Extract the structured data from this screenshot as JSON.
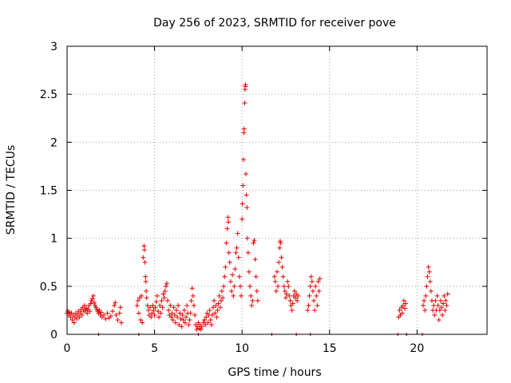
{
  "chart_data": {
    "type": "scatter",
    "title": "Day 256 of 2023, SRMTID for receiver pove",
    "xlabel": "GPS time / hours",
    "ylabel": "SRMTID / TECUs",
    "xlim": [
      0,
      24
    ],
    "ylim": [
      0,
      3
    ],
    "xticks": [
      0,
      5,
      10,
      15,
      20
    ],
    "yticks": [
      0,
      0.5,
      1,
      1.5,
      2,
      2.5,
      3
    ],
    "xtick_labels": [
      "0",
      "5",
      "10",
      "15",
      "20"
    ],
    "ytick_labels": [
      "0",
      "0.5",
      "1",
      "1.5",
      "2",
      "2.5",
      "3"
    ],
    "grid": true,
    "marker": "+",
    "color": "#e60000",
    "series": [
      {
        "name": "SRMTID",
        "points": [
          [
            0.0,
            0.22
          ],
          [
            0.05,
            0.24
          ],
          [
            0.1,
            0.2
          ],
          [
            0.15,
            0.23
          ],
          [
            0.2,
            0.18
          ],
          [
            0.25,
            0.22
          ],
          [
            0.3,
            0.15
          ],
          [
            0.35,
            0.2
          ],
          [
            0.4,
            0.12
          ],
          [
            0.45,
            0.18
          ],
          [
            0.5,
            0.22
          ],
          [
            0.55,
            0.16
          ],
          [
            0.6,
            0.2
          ],
          [
            0.65,
            0.24
          ],
          [
            0.7,
            0.18
          ],
          [
            0.75,
            0.22
          ],
          [
            0.8,
            0.26
          ],
          [
            0.85,
            0.2
          ],
          [
            0.9,
            0.28
          ],
          [
            0.95,
            0.24
          ],
          [
            1.0,
            0.3
          ],
          [
            1.05,
            0.25
          ],
          [
            1.1,
            0.27
          ],
          [
            1.15,
            0.22
          ],
          [
            1.2,
            0.26
          ],
          [
            1.25,
            0.3
          ],
          [
            1.3,
            0.24
          ],
          [
            1.35,
            0.32
          ],
          [
            1.4,
            0.35
          ],
          [
            1.45,
            0.37
          ],
          [
            1.5,
            0.4
          ],
          [
            1.55,
            0.33
          ],
          [
            1.6,
            0.3
          ],
          [
            1.65,
            0.28
          ],
          [
            1.7,
            0.26
          ],
          [
            1.75,
            0.24
          ],
          [
            1.8,
            0.22
          ],
          [
            1.85,
            0.25
          ],
          [
            1.9,
            0.2
          ],
          [
            1.95,
            0.23
          ],
          [
            2.0,
            0.18
          ],
          [
            2.1,
            0.2
          ],
          [
            2.2,
            0.16
          ],
          [
            2.3,
            0.22
          ],
          [
            2.4,
            0.17
          ],
          [
            2.5,
            0.19
          ],
          [
            2.6,
            0.24
          ],
          [
            2.7,
            0.3
          ],
          [
            2.75,
            0.33
          ],
          [
            2.8,
            0.2
          ],
          [
            2.9,
            0.15
          ],
          [
            3.0,
            0.22
          ],
          [
            3.05,
            0.28
          ],
          [
            3.1,
            0.12
          ],
          [
            4.0,
            0.3
          ],
          [
            4.05,
            0.35
          ],
          [
            4.1,
            0.22
          ],
          [
            4.15,
            0.38
          ],
          [
            4.2,
            0.15
          ],
          [
            4.25,
            0.4
          ],
          [
            4.3,
            0.12
          ],
          [
            4.35,
            0.8
          ],
          [
            4.4,
            0.92
          ],
          [
            4.42,
            0.88
          ],
          [
            4.45,
            0.75
          ],
          [
            4.48,
            0.6
          ],
          [
            4.5,
            0.55
          ],
          [
            4.52,
            0.45
          ],
          [
            4.55,
            0.38
          ],
          [
            4.6,
            0.3
          ],
          [
            4.65,
            0.25
          ],
          [
            4.7,
            0.2
          ],
          [
            4.75,
            0.28
          ],
          [
            4.8,
            0.18
          ],
          [
            4.85,
            0.22
          ],
          [
            4.9,
            0.3
          ],
          [
            4.95,
            0.25
          ],
          [
            5.0,
            0.2
          ],
          [
            5.05,
            0.28
          ],
          [
            5.1,
            0.34
          ],
          [
            5.15,
            0.4
          ],
          [
            5.2,
            0.24
          ],
          [
            5.25,
            0.18
          ],
          [
            5.3,
            0.3
          ],
          [
            5.35,
            0.22
          ],
          [
            5.4,
            0.35
          ],
          [
            5.45,
            0.28
          ],
          [
            5.5,
            0.42
          ],
          [
            5.55,
            0.38
          ],
          [
            5.6,
            0.45
          ],
          [
            5.65,
            0.5
          ],
          [
            5.7,
            0.53
          ],
          [
            5.75,
            0.35
          ],
          [
            5.8,
            0.25
          ],
          [
            5.85,
            0.2
          ],
          [
            5.9,
            0.3
          ],
          [
            5.95,
            0.18
          ],
          [
            6.0,
            0.22
          ],
          [
            6.05,
            0.15
          ],
          [
            6.1,
            0.28
          ],
          [
            6.15,
            0.2
          ],
          [
            6.2,
            0.12
          ],
          [
            6.25,
            0.25
          ],
          [
            6.3,
            0.18
          ],
          [
            6.35,
            0.3
          ],
          [
            6.4,
            0.1
          ],
          [
            6.45,
            0.22
          ],
          [
            6.5,
            0.16
          ],
          [
            6.55,
            0.08
          ],
          [
            6.6,
            0.2
          ],
          [
            6.65,
            0.15
          ],
          [
            6.7,
            0.25
          ],
          [
            6.75,
            0.12
          ],
          [
            6.8,
            0.18
          ],
          [
            6.85,
            0.3
          ],
          [
            6.9,
            0.22
          ],
          [
            6.95,
            0.1
          ],
          [
            7.0,
            0.15
          ],
          [
            7.05,
            0.22
          ],
          [
            7.1,
            0.35
          ],
          [
            7.15,
            0.48
          ],
          [
            7.2,
            0.4
          ],
          [
            7.25,
            0.3
          ],
          [
            7.3,
            0.2
          ],
          [
            7.35,
            0.1
          ],
          [
            7.4,
            0.05
          ],
          [
            7.45,
            0.08
          ],
          [
            7.5,
            0.12
          ],
          [
            7.55,
            0.06
          ],
          [
            7.6,
            0.1
          ],
          [
            7.65,
            0.05
          ],
          [
            7.7,
            0.08
          ],
          [
            7.8,
            0.12
          ],
          [
            7.85,
            0.15
          ],
          [
            7.9,
            0.1
          ],
          [
            7.95,
            0.18
          ],
          [
            8.0,
            0.22
          ],
          [
            8.05,
            0.12
          ],
          [
            8.1,
            0.2
          ],
          [
            8.15,
            0.25
          ],
          [
            8.2,
            0.15
          ],
          [
            8.25,
            0.1
          ],
          [
            8.3,
            0.2
          ],
          [
            8.35,
            0.28
          ],
          [
            8.4,
            0.35
          ],
          [
            8.45,
            0.22
          ],
          [
            8.5,
            0.3
          ],
          [
            8.55,
            0.18
          ],
          [
            8.6,
            0.25
          ],
          [
            8.65,
            0.32
          ],
          [
            8.7,
            0.4
          ],
          [
            8.75,
            0.28
          ],
          [
            8.8,
            0.35
          ],
          [
            8.85,
            0.45
          ],
          [
            8.9,
            0.38
          ],
          [
            8.95,
            0.5
          ],
          [
            9.0,
            0.6
          ],
          [
            9.05,
            0.7
          ],
          [
            9.1,
            0.95
          ],
          [
            9.15,
            1.1
          ],
          [
            9.2,
            1.22
          ],
          [
            9.22,
            1.17
          ],
          [
            9.25,
            0.85
          ],
          [
            9.3,
            0.75
          ],
          [
            9.35,
            0.55
          ],
          [
            9.4,
            0.45
          ],
          [
            9.45,
            0.62
          ],
          [
            9.5,
            0.4
          ],
          [
            9.55,
            0.5
          ],
          [
            9.6,
            0.68
          ],
          [
            9.65,
            0.85
          ],
          [
            9.7,
            0.9
          ],
          [
            9.75,
            1.05
          ],
          [
            9.8,
            0.8
          ],
          [
            9.85,
            0.6
          ],
          [
            9.9,
            0.5
          ],
          [
            9.95,
            0.4
          ],
          [
            10.0,
            1.2
          ],
          [
            10.02,
            1.36
          ],
          [
            10.05,
            1.55
          ],
          [
            10.08,
            1.82
          ],
          [
            10.1,
            2.1
          ],
          [
            10.12,
            2.14
          ],
          [
            10.15,
            2.41
          ],
          [
            10.17,
            2.55
          ],
          [
            10.18,
            2.58
          ],
          [
            10.2,
            2.6
          ],
          [
            10.22,
            1.67
          ],
          [
            10.25,
            1.45
          ],
          [
            10.28,
            1.32
          ],
          [
            10.3,
            1.0
          ],
          [
            10.35,
            0.85
          ],
          [
            10.4,
            0.65
          ],
          [
            10.45,
            0.5
          ],
          [
            10.5,
            0.4
          ],
          [
            10.55,
            0.3
          ],
          [
            10.6,
            0.35
          ],
          [
            10.65,
            0.95
          ],
          [
            10.7,
            0.98
          ],
          [
            10.75,
            0.78
          ],
          [
            10.8,
            0.6
          ],
          [
            10.85,
            0.45
          ],
          [
            10.9,
            0.35
          ],
          [
            11.85,
            0.6
          ],
          [
            11.9,
            0.55
          ],
          [
            11.95,
            0.45
          ],
          [
            12.0,
            0.65
          ],
          [
            12.05,
            0.5
          ],
          [
            12.1,
            0.75
          ],
          [
            12.15,
            0.9
          ],
          [
            12.18,
            0.97
          ],
          [
            12.2,
            0.95
          ],
          [
            12.25,
            0.8
          ],
          [
            12.3,
            0.7
          ],
          [
            12.35,
            0.6
          ],
          [
            12.4,
            0.5
          ],
          [
            12.45,
            0.45
          ],
          [
            12.5,
            0.38
          ],
          [
            12.55,
            0.42
          ],
          [
            12.6,
            0.55
          ],
          [
            12.65,
            0.5
          ],
          [
            12.7,
            0.4
          ],
          [
            12.75,
            0.35
          ],
          [
            12.8,
            0.3
          ],
          [
            12.85,
            0.25
          ],
          [
            12.9,
            0.32
          ],
          [
            12.95,
            0.4
          ],
          [
            13.0,
            0.45
          ],
          [
            13.05,
            0.38
          ],
          [
            13.1,
            0.42
          ],
          [
            13.15,
            0.35
          ],
          [
            13.2,
            0.4
          ],
          [
            13.75,
            0.25
          ],
          [
            13.8,
            0.3
          ],
          [
            13.85,
            0.4
          ],
          [
            13.9,
            0.5
          ],
          [
            13.95,
            0.6
          ],
          [
            14.0,
            0.55
          ],
          [
            14.05,
            0.45
          ],
          [
            14.1,
            0.35
          ],
          [
            14.15,
            0.25
          ],
          [
            14.2,
            0.5
          ],
          [
            14.25,
            0.4
          ],
          [
            14.3,
            0.3
          ],
          [
            14.35,
            0.55
          ],
          [
            14.4,
            0.45
          ],
          [
            14.45,
            0.58
          ],
          [
            18.95,
            0.18
          ],
          [
            19.0,
            0.25
          ],
          [
            19.05,
            0.2
          ],
          [
            19.1,
            0.28
          ],
          [
            19.15,
            0.22
          ],
          [
            19.2,
            0.3
          ],
          [
            19.25,
            0.35
          ],
          [
            19.3,
            0.27
          ],
          [
            19.35,
            0.32
          ],
          [
            20.35,
            0.3
          ],
          [
            20.4,
            0.35
          ],
          [
            20.45,
            0.25
          ],
          [
            20.5,
            0.4
          ],
          [
            20.55,
            0.5
          ],
          [
            20.6,
            0.6
          ],
          [
            20.65,
            0.7
          ],
          [
            20.7,
            0.65
          ],
          [
            20.75,
            0.55
          ],
          [
            20.8,
            0.45
          ],
          [
            20.85,
            0.35
          ],
          [
            20.9,
            0.25
          ],
          [
            20.95,
            0.3
          ],
          [
            21.0,
            0.2
          ],
          [
            21.05,
            0.35
          ],
          [
            21.1,
            0.25
          ],
          [
            21.15,
            0.4
          ],
          [
            21.2,
            0.3
          ],
          [
            21.25,
            0.15
          ],
          [
            21.3,
            0.25
          ],
          [
            21.35,
            0.35
          ],
          [
            21.4,
            0.28
          ],
          [
            21.45,
            0.2
          ],
          [
            21.5,
            0.32
          ],
          [
            21.55,
            0.4
          ],
          [
            21.6,
            0.25
          ],
          [
            21.65,
            0.35
          ],
          [
            21.7,
            0.3
          ],
          [
            21.75,
            0.42
          ]
        ]
      }
    ],
    "baseline_markers": [
      1.8,
      4.1,
      7.5,
      11.7,
      13.1,
      13.9,
      18.9,
      19.4,
      20.3
    ]
  }
}
